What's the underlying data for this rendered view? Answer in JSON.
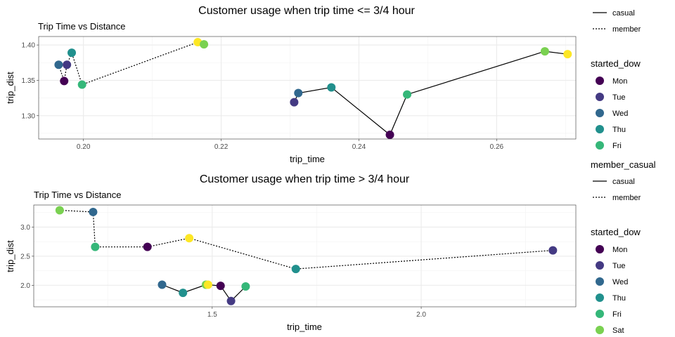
{
  "chart_data": [
    {
      "type": "line",
      "title": "Customer usage when trip time <= 3/4 hour",
      "subtitle": "Trip Time vs Distance",
      "xlabel": "trip_time",
      "ylabel": "trip_dist",
      "xlim": [
        0.1935,
        0.2715
      ],
      "ylim": [
        1.267,
        1.412
      ],
      "xticks": [
        {
          "value": 0.2,
          "label": "0.20"
        },
        {
          "value": 0.22,
          "label": "0.22"
        },
        {
          "value": 0.24,
          "label": "0.24"
        },
        {
          "value": 0.26,
          "label": "0.26"
        }
      ],
      "yticks": [
        {
          "value": 1.3,
          "label": "1.30"
        },
        {
          "value": 1.35,
          "label": "1.35"
        },
        {
          "value": 1.4,
          "label": "1.40"
        }
      ],
      "grid": true,
      "series": [
        {
          "name": "casual",
          "line_style": "solid",
          "points": [
            {
              "x": 0.2306,
              "y": 1.319,
              "day": "Tue"
            },
            {
              "x": 0.2312,
              "y": 1.332,
              "day": "Wed"
            },
            {
              "x": 0.236,
              "y": 1.34,
              "day": "Thu"
            },
            {
              "x": 0.2445,
              "y": 1.273,
              "day": "Mon"
            },
            {
              "x": 0.247,
              "y": 1.33,
              "day": "Fri"
            },
            {
              "x": 0.267,
              "y": 1.391,
              "day": "Sat"
            },
            {
              "x": 0.2703,
              "y": 1.387,
              "day": "Sun"
            }
          ]
        },
        {
          "name": "member",
          "line_style": "dotted",
          "points": [
            {
              "x": 0.1964,
              "y": 1.372,
              "day": "Wed"
            },
            {
              "x": 0.1972,
              "y": 1.349,
              "day": "Mon"
            },
            {
              "x": 0.1976,
              "y": 1.372,
              "day": "Tue"
            },
            {
              "x": 0.1983,
              "y": 1.389,
              "day": "Thu"
            },
            {
              "x": 0.1998,
              "y": 1.344,
              "day": "Fri"
            },
            {
              "x": 0.2166,
              "y": 1.404,
              "day": "Sun"
            },
            {
              "x": 0.2175,
              "y": 1.401,
              "day": "Sat"
            }
          ]
        }
      ],
      "legend": {
        "placement": "right",
        "line_title": "",
        "line_entries": [
          {
            "label": "casual",
            "style": "solid"
          },
          {
            "label": "member",
            "style": "dotted"
          }
        ],
        "color_title": "started_dow",
        "color_entries": [
          {
            "label": "Mon",
            "color": "#440154"
          },
          {
            "label": "Tue",
            "color": "#443a83"
          },
          {
            "label": "Wed",
            "color": "#31688e"
          },
          {
            "label": "Thu",
            "color": "#21908d"
          },
          {
            "label": "Fri",
            "color": "#35b779"
          }
        ]
      }
    },
    {
      "type": "line",
      "title": "Customer usage when trip time > 3/4 hour",
      "subtitle": "Trip Time vs Distance",
      "xlabel": "trip_time",
      "ylabel": "trip_dist",
      "xlim": [
        1.073,
        2.37
      ],
      "ylim": [
        1.63,
        3.38
      ],
      "xticks": [
        {
          "value": 1.5,
          "label": "1.5"
        },
        {
          "value": 2.0,
          "label": "2.0"
        }
      ],
      "yticks": [
        {
          "value": 2.0,
          "label": "2.0"
        },
        {
          "value": 2.5,
          "label": "2.5"
        },
        {
          "value": 3.0,
          "label": "3.0"
        }
      ],
      "grid": true,
      "series": [
        {
          "name": "casual",
          "line_style": "solid",
          "points": [
            {
              "x": 1.38,
              "y": 2.01,
              "day": "Wed"
            },
            {
              "x": 1.43,
              "y": 1.87,
              "day": "Thu"
            },
            {
              "x": 1.485,
              "y": 2.01,
              "day": "Sat"
            },
            {
              "x": 1.49,
              "y": 2.01,
              "day": "Sun"
            },
            {
              "x": 1.52,
              "y": 1.99,
              "day": "Mon"
            },
            {
              "x": 1.545,
              "y": 1.73,
              "day": "Tue"
            },
            {
              "x": 1.58,
              "y": 1.98,
              "day": "Fri"
            }
          ]
        },
        {
          "name": "member",
          "line_style": "dotted",
          "points": [
            {
              "x": 1.135,
              "y": 3.29,
              "day": "Sat"
            },
            {
              "x": 1.215,
              "y": 3.26,
              "day": "Wed"
            },
            {
              "x": 1.22,
              "y": 2.66,
              "day": "Fri"
            },
            {
              "x": 1.345,
              "y": 2.66,
              "day": "Mon"
            },
            {
              "x": 1.445,
              "y": 2.81,
              "day": "Sun"
            },
            {
              "x": 1.7,
              "y": 2.28,
              "day": "Thu"
            },
            {
              "x": 2.315,
              "y": 2.6,
              "day": "Tue"
            }
          ]
        }
      ],
      "legend": {
        "placement": "right",
        "line_title": "member_casual",
        "line_entries": [
          {
            "label": "casual",
            "style": "solid"
          },
          {
            "label": "member",
            "style": "dotted"
          }
        ],
        "color_title": "started_dow",
        "color_entries": [
          {
            "label": "Mon",
            "color": "#440154"
          },
          {
            "label": "Tue",
            "color": "#443a83"
          },
          {
            "label": "Wed",
            "color": "#31688e"
          },
          {
            "label": "Thu",
            "color": "#21908d"
          },
          {
            "label": "Fri",
            "color": "#35b779"
          },
          {
            "label": "Sat",
            "color": "#7ad151"
          }
        ]
      }
    }
  ],
  "day_colors": {
    "Mon": "#440154",
    "Tue": "#443a83",
    "Wed": "#31688e",
    "Thu": "#21908d",
    "Fri": "#35b779",
    "Sat": "#7ad151",
    "Sun": "#fde725"
  }
}
